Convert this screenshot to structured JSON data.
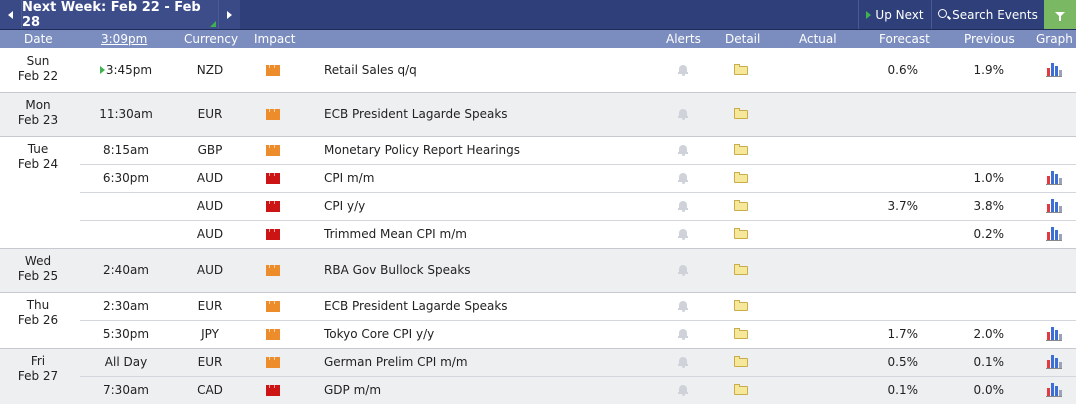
{
  "toolbar": {
    "week_label": "Next Week: Feb 22 - Feb 28",
    "up_next_label": "Up Next",
    "search_label": "Search Events"
  },
  "headers": {
    "date": "Date",
    "time": "3:09pm",
    "currency": "Currency",
    "impact": "Impact",
    "alerts": "Alerts",
    "detail": "Detail",
    "actual": "Actual",
    "forecast": "Forecast",
    "previous": "Previous",
    "graph": "Graph"
  },
  "days": [
    {
      "day": "Sun",
      "date": "Feb 22"
    },
    {
      "day": "Mon",
      "date": "Feb 23"
    },
    {
      "day": "Tue",
      "date": "Feb 24"
    },
    {
      "day": "Wed",
      "date": "Feb 25"
    },
    {
      "day": "Thu",
      "date": "Feb 26"
    },
    {
      "day": "Fri",
      "date": "Feb 27"
    }
  ],
  "events": [
    {
      "time": "3:45pm",
      "currency": "NZD",
      "impact": "orange",
      "event": "Retail Sales q/q",
      "actual": "",
      "forecast": "0.6%",
      "previous": "1.9%",
      "graph": true
    },
    {
      "time": "11:30am",
      "currency": "EUR",
      "impact": "orange",
      "event": "ECB President Lagarde Speaks",
      "actual": "",
      "forecast": "",
      "previous": "",
      "graph": false
    },
    {
      "time": "8:15am",
      "currency": "GBP",
      "impact": "orange",
      "event": "Monetary Policy Report Hearings",
      "actual": "",
      "forecast": "",
      "previous": "",
      "graph": false
    },
    {
      "time": "6:30pm",
      "currency": "AUD",
      "impact": "red",
      "event": "CPI m/m",
      "actual": "",
      "forecast": "",
      "previous": "1.0%",
      "graph": true
    },
    {
      "time": "",
      "currency": "AUD",
      "impact": "red",
      "event": "CPI y/y",
      "actual": "",
      "forecast": "3.7%",
      "previous": "3.8%",
      "graph": true
    },
    {
      "time": "",
      "currency": "AUD",
      "impact": "red",
      "event": "Trimmed Mean CPI m/m",
      "actual": "",
      "forecast": "",
      "previous": "0.2%",
      "graph": true
    },
    {
      "time": "2:40am",
      "currency": "AUD",
      "impact": "orange",
      "event": "RBA Gov Bullock Speaks",
      "actual": "",
      "forecast": "",
      "previous": "",
      "graph": false
    },
    {
      "time": "2:30am",
      "currency": "EUR",
      "impact": "orange",
      "event": "ECB President Lagarde Speaks",
      "actual": "",
      "forecast": "",
      "previous": "",
      "graph": false
    },
    {
      "time": "5:30pm",
      "currency": "JPY",
      "impact": "orange",
      "event": "Tokyo Core CPI y/y",
      "actual": "",
      "forecast": "1.7%",
      "previous": "2.0%",
      "graph": true
    },
    {
      "time": "All Day",
      "currency": "EUR",
      "impact": "orange",
      "event": "German Prelim CPI m/m",
      "actual": "",
      "forecast": "0.5%",
      "previous": "0.1%",
      "graph": true
    },
    {
      "time": "7:30am",
      "currency": "CAD",
      "impact": "red",
      "event": "GDP m/m",
      "actual": "",
      "forecast": "0.1%",
      "previous": "0.0%",
      "graph": true
    }
  ],
  "colors": {
    "toolbar_bg": "#2f3f7a",
    "header_bg": "#7b8cbf",
    "impact_orange": "#ed8c2b",
    "impact_red": "#cc1414",
    "filter_green": "#7bb863"
  }
}
